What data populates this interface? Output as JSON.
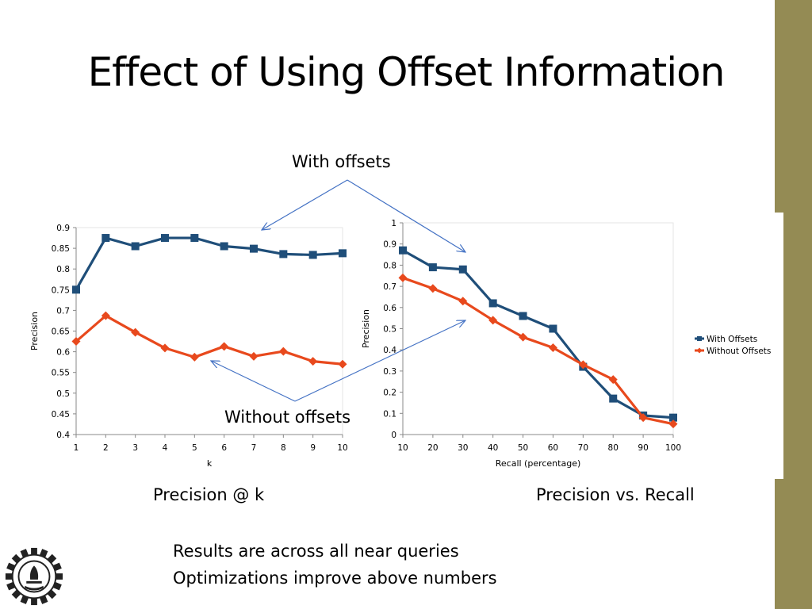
{
  "slide": {
    "title": "Effect of Using Offset Information",
    "callout_with": "With offsets",
    "callout_without": "Without offsets",
    "caption_left": "Precision @ k",
    "caption_right": "Precision vs. Recall",
    "note_lines": [
      "Results are across all near queries",
      "Optimizations improve above numbers"
    ]
  },
  "colors": {
    "with": "#1f4e79",
    "without": "#e8491d",
    "side_bar": "#948b54",
    "arrow": "#4472c4"
  },
  "chart_data": [
    {
      "type": "line",
      "title": "",
      "xlabel": "k",
      "ylabel": "Precision",
      "x": [
        1,
        2,
        3,
        4,
        5,
        6,
        7,
        8,
        9,
        10
      ],
      "ylim": [
        0.4,
        0.9
      ],
      "yticks": [
        0.4,
        0.45,
        0.5,
        0.55,
        0.6,
        0.65,
        0.7,
        0.75,
        0.8,
        0.85,
        0.9
      ],
      "ytick_labels": [
        "0.4",
        "0.45",
        "0.5",
        "0.55",
        "0.6",
        "0.65",
        "0.7",
        "0.75",
        "0.8",
        "0.85",
        "0.9"
      ],
      "series": [
        {
          "values": [
            0.75,
            0.875,
            0.855,
            0.875,
            0.875,
            0.855,
            0.849,
            0.836,
            0.834,
            0.838
          ]
        },
        {
          "values": [
            0.625,
            0.687,
            0.647,
            0.609,
            0.587,
            0.613,
            0.589,
            0.601,
            0.577,
            0.57
          ]
        }
      ],
      "grid": false,
      "legend": "none"
    },
    {
      "type": "line",
      "title": "",
      "xlabel": "Recall (percentage)",
      "ylabel": "Precision",
      "x": [
        10,
        20,
        30,
        40,
        50,
        60,
        70,
        80,
        90,
        100
      ],
      "ylim": [
        0,
        1
      ],
      "yticks": [
        0,
        0.1,
        0.2,
        0.3,
        0.4,
        0.5,
        0.6,
        0.7,
        0.8,
        0.9,
        1
      ],
      "ytick_labels": [
        "0",
        "0.1",
        "0.2",
        "0.3",
        "0.4",
        "0.5",
        "0.6",
        "0.7",
        "0.8",
        "0.9",
        "1"
      ],
      "series": [
        {
          "name": "With Offsets",
          "values": [
            0.87,
            0.79,
            0.78,
            0.62,
            0.56,
            0.5,
            0.32,
            0.17,
            0.09,
            0.08
          ]
        },
        {
          "name": "Without Offsets",
          "values": [
            0.74,
            0.69,
            0.63,
            0.54,
            0.46,
            0.41,
            0.33,
            0.26,
            0.08,
            0.05
          ]
        }
      ],
      "grid": false,
      "legend": "right"
    }
  ]
}
